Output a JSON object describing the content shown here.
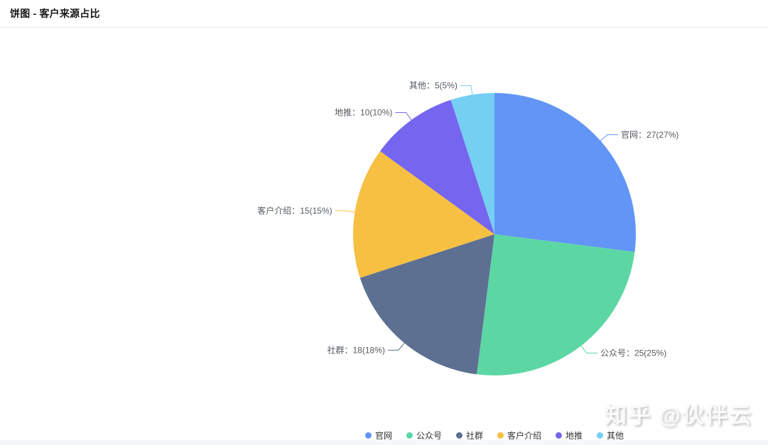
{
  "header": {
    "title": "饼图 - 客户来源占比"
  },
  "chart_data": {
    "type": "pie",
    "title": "客户来源占比",
    "categories": [
      "官网",
      "公众号",
      "社群",
      "客户介绍",
      "地推",
      "其他"
    ],
    "values": [
      27,
      25,
      18,
      15,
      10,
      5
    ],
    "percents": [
      27,
      25,
      18,
      15,
      10,
      5
    ],
    "colors": [
      "#6295F5",
      "#5CD7A4",
      "#5D7092",
      "#F6C043",
      "#7565EF",
      "#74CFF2"
    ],
    "label_format": "{name}：{value}({percent}%)",
    "legend": {
      "position": "bottom",
      "items": [
        "官网",
        "公众号",
        "社群",
        "客户介绍",
        "地推",
        "其他"
      ]
    },
    "start_angle": "top",
    "direction": "clockwise"
  },
  "watermark": {
    "text": "知乎 @伙伴云"
  }
}
